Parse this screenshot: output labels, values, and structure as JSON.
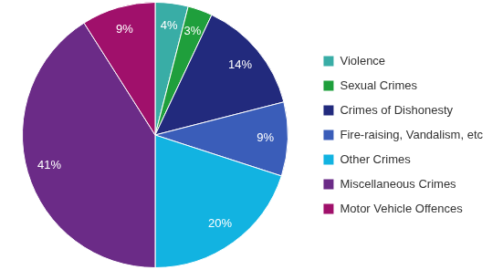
{
  "chart_data": {
    "type": "pie",
    "categories": [
      "Violence",
      "Sexual Crimes",
      "Crimes of Dishonesty",
      "Fire-raising, Vandalism, etc",
      "Other Crimes",
      "Miscellaneous Crimes",
      "Motor Vehicle Offences"
    ],
    "values": [
      4,
      3,
      14,
      9,
      20,
      41,
      9
    ],
    "value_labels": [
      "4%",
      "3%",
      "14%",
      "9%",
      "20%",
      "41%",
      "9%"
    ],
    "colors": [
      "#39ada6",
      "#1f9f3c",
      "#222a7d",
      "#3a5db9",
      "#12b3e1",
      "#6b2b87",
      "#a0106b"
    ],
    "legend": "right",
    "data_labels": true
  }
}
